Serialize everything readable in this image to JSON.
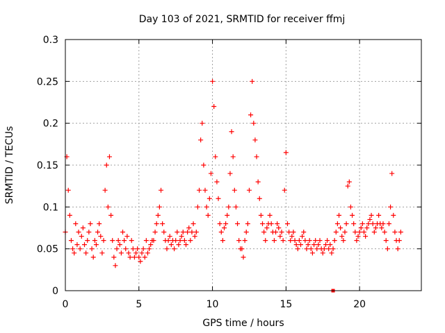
{
  "chart_data": {
    "type": "scatter",
    "title": "Day 103 of 2021, SRMTID for receiver ffmj",
    "xlabel": "GPS time / hours",
    "ylabel": "SRMTID / TECUs",
    "xlim": [
      0,
      24.2
    ],
    "ylim": [
      0,
      0.3
    ],
    "x_ticks": [
      0,
      5,
      10,
      15,
      20
    ],
    "x_tick_labels": [
      "0",
      "5",
      "10",
      "15",
      "20"
    ],
    "y_ticks": [
      0,
      0.05,
      0.1,
      0.15,
      0.2,
      0.25,
      0.3
    ],
    "y_tick_labels": [
      "0",
      "0.05",
      "0.1",
      "0.15",
      "0.2",
      "0.25",
      "0.3"
    ],
    "grid": true,
    "marker": "plus",
    "series_color": "#ff0000",
    "square_marker": {
      "x": 18.2,
      "y": 0.0
    },
    "series": [
      {
        "x": [
          0.0,
          0.1,
          0.2,
          0.3,
          0.4,
          0.5,
          0.6,
          0.7,
          0.8,
          0.9,
          1.0,
          1.1,
          1.2,
          1.3,
          1.4,
          1.5,
          1.6,
          1.7,
          1.8,
          1.9,
          2.0,
          2.1,
          2.2,
          2.3,
          2.4,
          2.5,
          2.6,
          2.7,
          2.8,
          2.9,
          3.0,
          3.1,
          3.2,
          3.3,
          3.4,
          3.5,
          3.6,
          3.7,
          3.8,
          3.9,
          4.0,
          4.1,
          4.2,
          4.3,
          4.4,
          4.5,
          4.6,
          4.7,
          4.8,
          4.9,
          5.0,
          5.1,
          5.2,
          5.3,
          5.4,
          5.5,
          5.6,
          5.7,
          5.8,
          5.9,
          6.0,
          6.1,
          6.2,
          6.3,
          6.4,
          6.5,
          6.6,
          6.7,
          6.8,
          6.9,
          7.0,
          7.1,
          7.2,
          7.3,
          7.4,
          7.5,
          7.6,
          7.7,
          7.8,
          7.9,
          8.0,
          8.1,
          8.2,
          8.3,
          8.4,
          8.5,
          8.6,
          8.7,
          8.8,
          8.9,
          9.0,
          9.1,
          9.2,
          9.3,
          9.4,
          9.5,
          9.6,
          9.7,
          9.8,
          9.9,
          10.0,
          10.1,
          10.2,
          10.3,
          10.4,
          10.5,
          10.6,
          10.7,
          10.8,
          10.9,
          11.0,
          11.1,
          11.2,
          11.3,
          11.4,
          11.5,
          11.6,
          11.7,
          11.8,
          11.9,
          12.0,
          12.1,
          12.2,
          12.3,
          12.4,
          12.5,
          12.6,
          12.7,
          12.8,
          12.9,
          13.0,
          13.1,
          13.2,
          13.3,
          13.4,
          13.5,
          13.6,
          13.7,
          13.8,
          13.9,
          14.0,
          14.1,
          14.2,
          14.3,
          14.4,
          14.5,
          14.6,
          14.7,
          14.8,
          14.9,
          15.0,
          15.1,
          15.2,
          15.3,
          15.4,
          15.5,
          15.6,
          15.7,
          15.8,
          15.9,
          16.0,
          16.1,
          16.2,
          16.3,
          16.4,
          16.5,
          16.6,
          16.7,
          16.8,
          16.9,
          17.0,
          17.1,
          17.2,
          17.3,
          17.4,
          17.5,
          17.6,
          17.7,
          17.8,
          17.9,
          18.0,
          18.1,
          18.2,
          18.3,
          18.4,
          18.5,
          18.6,
          18.7,
          18.8,
          18.9,
          19.0,
          19.1,
          19.2,
          19.3,
          19.4,
          19.5,
          19.6,
          19.7,
          19.8,
          19.9,
          20.0,
          20.1,
          20.2,
          20.3,
          20.4,
          20.5,
          20.6,
          20.7,
          20.8,
          20.9,
          21.0,
          21.1,
          21.2,
          21.3,
          21.4,
          21.5,
          21.6,
          21.7,
          21.8,
          21.9,
          22.0,
          22.1,
          22.2,
          22.3,
          22.4,
          22.5,
          22.6,
          22.7,
          22.8
        ],
        "y": [
          0.07,
          0.16,
          0.12,
          0.09,
          0.06,
          0.05,
          0.045,
          0.08,
          0.055,
          0.07,
          0.05,
          0.065,
          0.075,
          0.055,
          0.045,
          0.06,
          0.07,
          0.08,
          0.05,
          0.04,
          0.06,
          0.055,
          0.07,
          0.08,
          0.065,
          0.045,
          0.06,
          0.12,
          0.15,
          0.1,
          0.16,
          0.09,
          0.06,
          0.04,
          0.03,
          0.05,
          0.06,
          0.055,
          0.045,
          0.07,
          0.06,
          0.05,
          0.065,
          0.045,
          0.04,
          0.06,
          0.05,
          0.04,
          0.045,
          0.05,
          0.04,
          0.035,
          0.045,
          0.05,
          0.04,
          0.06,
          0.045,
          0.05,
          0.055,
          0.06,
          0.06,
          0.07,
          0.08,
          0.09,
          0.1,
          0.12,
          0.08,
          0.07,
          0.06,
          0.05,
          0.06,
          0.065,
          0.055,
          0.06,
          0.05,
          0.06,
          0.07,
          0.055,
          0.06,
          0.065,
          0.07,
          0.06,
          0.055,
          0.07,
          0.075,
          0.06,
          0.07,
          0.08,
          0.065,
          0.07,
          0.1,
          0.12,
          0.18,
          0.2,
          0.15,
          0.12,
          0.1,
          0.09,
          0.11,
          0.14,
          0.25,
          0.22,
          0.16,
          0.13,
          0.11,
          0.08,
          0.07,
          0.06,
          0.075,
          0.08,
          0.09,
          0.1,
          0.14,
          0.19,
          0.16,
          0.12,
          0.1,
          0.08,
          0.06,
          0.05,
          0.05,
          0.04,
          0.06,
          0.07,
          0.08,
          0.12,
          0.21,
          0.25,
          0.2,
          0.18,
          0.16,
          0.13,
          0.11,
          0.09,
          0.08,
          0.07,
          0.06,
          0.075,
          0.08,
          0.09,
          0.08,
          0.07,
          0.06,
          0.07,
          0.08,
          0.075,
          0.065,
          0.07,
          0.06,
          0.12,
          0.165,
          0.08,
          0.07,
          0.06,
          0.065,
          0.07,
          0.06,
          0.055,
          0.05,
          0.06,
          0.055,
          0.065,
          0.07,
          0.06,
          0.05,
          0.055,
          0.06,
          0.05,
          0.045,
          0.055,
          0.06,
          0.05,
          0.055,
          0.06,
          0.05,
          0.045,
          0.05,
          0.055,
          0.06,
          0.05,
          0.055,
          0.045,
          0.05,
          0.06,
          0.07,
          0.08,
          0.09,
          0.075,
          0.065,
          0.06,
          0.07,
          0.08,
          0.125,
          0.13,
          0.1,
          0.09,
          0.08,
          0.07,
          0.06,
          0.065,
          0.07,
          0.075,
          0.08,
          0.07,
          0.065,
          0.075,
          0.08,
          0.085,
          0.09,
          0.08,
          0.07,
          0.075,
          0.08,
          0.09,
          0.08,
          0.075,
          0.08,
          0.07,
          0.06,
          0.05,
          0.08,
          0.1,
          0.14,
          0.09,
          0.07,
          0.06,
          0.05,
          0.06,
          0.07
        ]
      }
    ]
  }
}
